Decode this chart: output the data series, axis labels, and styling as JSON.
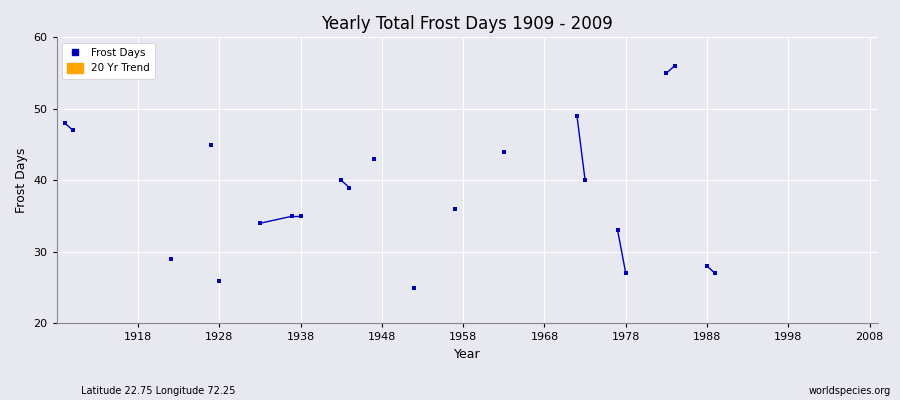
{
  "title": "Yearly Total Frost Days 1909 - 2009",
  "xlabel": "Year",
  "ylabel": "Frost Days",
  "subtitle": "Latitude 22.75 Longitude 72.25",
  "watermark": "worldspecies.org",
  "ylim": [
    20,
    60
  ],
  "xlim": [
    1908,
    2009
  ],
  "yticks": [
    20,
    30,
    40,
    50,
    60
  ],
  "xticks": [
    1918,
    1928,
    1938,
    1948,
    1958,
    1968,
    1978,
    1988,
    1998,
    2008
  ],
  "frost_days_color": "#0000bb",
  "trend_color": "#FFA500",
  "bg_color": "#e8e8f0",
  "grid_color": "#ffffff",
  "frost_segments": [
    [
      [
        1909,
        48
      ],
      [
        1910,
        47
      ]
    ],
    [
      [
        1933,
        34
      ],
      [
        1937,
        35
      ]
    ],
    [
      [
        1937,
        35
      ],
      [
        1938,
        35
      ]
    ],
    [
      [
        1943,
        40
      ],
      [
        1944,
        39
      ]
    ],
    [
      [
        1972,
        49
      ],
      [
        1973,
        40
      ]
    ],
    [
      [
        1977,
        33
      ],
      [
        1978,
        27
      ]
    ],
    [
      [
        1983,
        55
      ],
      [
        1984,
        56
      ]
    ],
    [
      [
        1988,
        28
      ],
      [
        1989,
        27
      ]
    ]
  ],
  "frost_points": [
    [
      1909,
      48
    ],
    [
      1910,
      47
    ],
    [
      1922,
      29
    ],
    [
      1927,
      45
    ],
    [
      1928,
      26
    ],
    [
      1933,
      34
    ],
    [
      1937,
      35
    ],
    [
      1938,
      35
    ],
    [
      1943,
      40
    ],
    [
      1944,
      39
    ],
    [
      1947,
      43
    ],
    [
      1952,
      25
    ],
    [
      1957,
      36
    ],
    [
      1963,
      44
    ],
    [
      1972,
      49
    ],
    [
      1973,
      40
    ],
    [
      1977,
      33
    ],
    [
      1978,
      27
    ],
    [
      1983,
      55
    ],
    [
      1984,
      56
    ],
    [
      1988,
      28
    ],
    [
      1989,
      27
    ]
  ],
  "trend_data": []
}
